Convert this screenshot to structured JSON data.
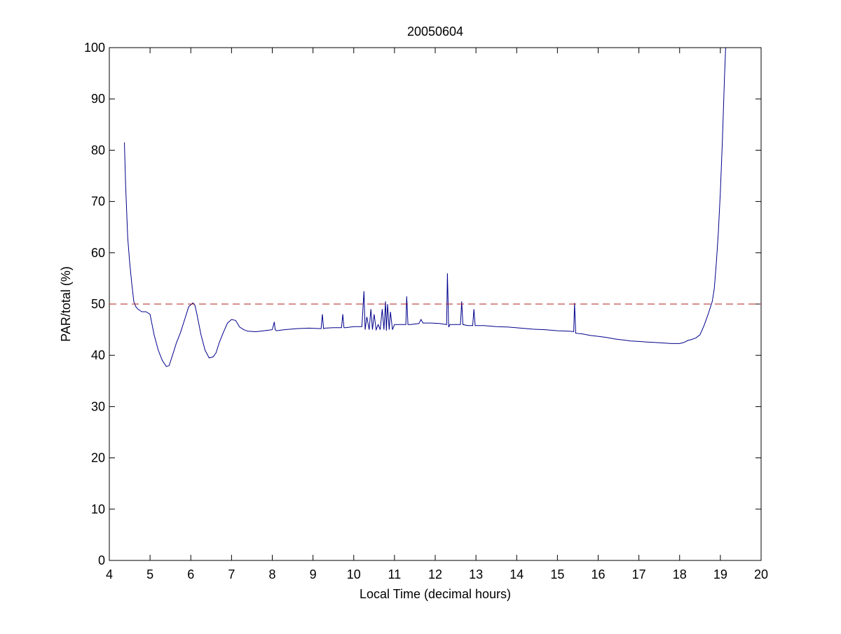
{
  "chart_data": {
    "type": "line",
    "title": "20050604",
    "xlabel": "Local Time (decimal hours)",
    "ylabel": "PAR/total (%)",
    "xlim": [
      4,
      20
    ],
    "ylim": [
      0,
      100
    ],
    "xticks": [
      4,
      5,
      6,
      7,
      8,
      9,
      10,
      11,
      12,
      13,
      14,
      15,
      16,
      17,
      18,
      19,
      20
    ],
    "yticks": [
      0,
      10,
      20,
      30,
      40,
      50,
      60,
      70,
      80,
      90,
      100
    ],
    "grid": false,
    "legend": "none",
    "series": [
      {
        "color": "#00008B",
        "style": "solid",
        "x": [
          4.37,
          4.4,
          4.45,
          4.5,
          4.55,
          4.6,
          4.65,
          4.7,
          4.8,
          4.9,
          5.0,
          5.05,
          5.1,
          5.2,
          5.3,
          5.4,
          5.47,
          5.55,
          5.65,
          5.75,
          5.85,
          5.95,
          6.05,
          6.1,
          6.15,
          6.25,
          6.35,
          6.45,
          6.55,
          6.62,
          6.7,
          6.8,
          6.9,
          7.0,
          7.1,
          7.2,
          7.3,
          7.4,
          7.6,
          7.8,
          8.0,
          8.05,
          8.07,
          8.1,
          8.3,
          8.6,
          8.9,
          9.2,
          9.23,
          9.26,
          9.3,
          9.5,
          9.7,
          9.73,
          9.76,
          9.8,
          10.0,
          10.2,
          10.25,
          10.28,
          10.32,
          10.38,
          10.42,
          10.46,
          10.5,
          10.55,
          10.6,
          10.65,
          10.7,
          10.74,
          10.78,
          10.8,
          10.83,
          10.87,
          10.9,
          10.95,
          11.0,
          11.1,
          11.2,
          11.28,
          11.3,
          11.33,
          11.4,
          11.6,
          11.65,
          11.7,
          11.9,
          12.1,
          12.28,
          12.3,
          12.33,
          12.36,
          12.5,
          12.62,
          12.65,
          12.68,
          12.8,
          12.92,
          12.95,
          12.98,
          13.2,
          13.5,
          13.8,
          14.1,
          14.4,
          14.7,
          15.0,
          15.3,
          15.4,
          15.42,
          15.45,
          15.6,
          15.8,
          16.0,
          16.2,
          16.4,
          16.6,
          16.8,
          17.0,
          17.2,
          17.4,
          17.6,
          17.8,
          18.0,
          18.1,
          18.2,
          18.3,
          18.4,
          18.5,
          18.6,
          18.7,
          18.8,
          18.85,
          18.9,
          18.95,
          19.0,
          19.05,
          19.1,
          19.13
        ],
        "y": [
          81.5,
          73,
          63,
          58,
          54,
          50.5,
          49.5,
          49,
          48.5,
          48.5,
          48,
          46,
          44,
          41,
          39,
          37.8,
          38,
          40,
          42.5,
          44.5,
          47,
          49.5,
          50.2,
          49.8,
          48,
          44,
          41,
          39.5,
          39.7,
          40.5,
          42.5,
          44.5,
          46.3,
          47,
          46.8,
          45.5,
          45,
          44.7,
          44.6,
          44.8,
          45,
          46.5,
          45,
          44.8,
          45,
          45.2,
          45.3,
          45.2,
          48,
          45.2,
          45.3,
          45.4,
          45.4,
          48,
          45.4,
          45.4,
          45.6,
          45.6,
          52.5,
          45,
          47.5,
          45,
          49,
          45,
          48,
          45,
          46,
          45,
          49,
          45,
          50.5,
          44.8,
          50,
          45,
          48.5,
          45,
          46,
          46,
          46,
          46,
          51.5,
          46,
          46,
          46.2,
          47,
          46.3,
          46.3,
          46.2,
          46,
          56,
          45.5,
          46,
          46,
          46,
          50.5,
          46,
          45.8,
          45.8,
          49,
          45.8,
          45.8,
          45.6,
          45.5,
          45.3,
          45.1,
          45,
          44.8,
          44.7,
          44.6,
          50.2,
          44.3,
          44.2,
          43.9,
          43.7,
          43.5,
          43.2,
          43,
          42.8,
          42.7,
          42.6,
          42.5,
          42.4,
          42.3,
          42.3,
          42.5,
          42.9,
          43.1,
          43.4,
          44,
          45.8,
          48,
          50.5,
          53,
          58,
          64,
          72,
          82,
          94,
          100
        ]
      },
      {
        "color": "#B22222",
        "style": "dashed",
        "x": [
          4,
          20
        ],
        "y": [
          50,
          50
        ]
      }
    ]
  }
}
